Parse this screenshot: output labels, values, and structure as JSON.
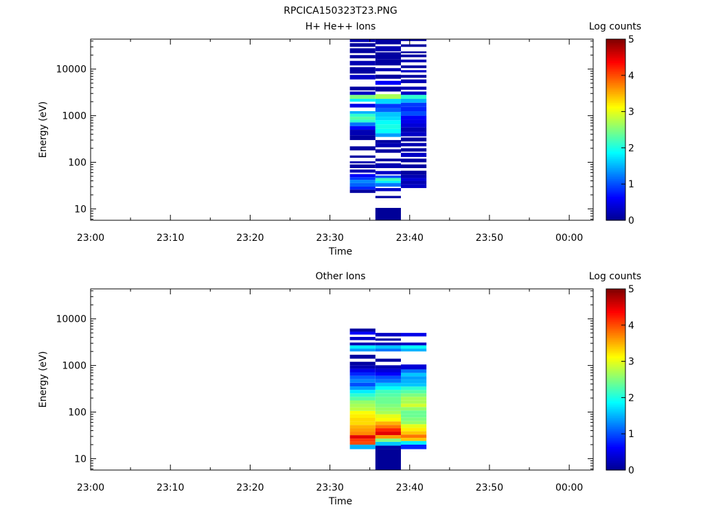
{
  "page_title": "RPCICA150323T23.PNG",
  "colormap": [
    "#00008f",
    "#0000ff",
    "#007fff",
    "#00ffff",
    "#7fff7f",
    "#ffff00",
    "#ff7f00",
    "#ff0000",
    "#7f0000"
  ],
  "chart_data": [
    {
      "type": "heatmap",
      "title": "H+ He++ Ions",
      "xlabel": "Time",
      "ylabel": "Energy (eV)",
      "colorbar_label": "Log counts",
      "colorbar_range": [
        0,
        5
      ],
      "colorbar_ticks": [
        "0",
        "1",
        "2",
        "3",
        "4",
        "5"
      ],
      "x_range": [
        "23:00",
        "00:03"
      ],
      "x_ticks": [
        "23:00",
        "23:10",
        "23:20",
        "23:30",
        "23:40",
        "23:50",
        "00:00"
      ],
      "y_scale": "log",
      "y_range": [
        5.7,
        44000
      ],
      "y_ticks": [
        "10",
        "100",
        "1000",
        "10000"
      ],
      "columns": [
        {
          "start": "23:32.5",
          "end": "23:35.7",
          "bins": [
            [
              22,
              26,
              0.1
            ],
            [
              26,
              30,
              0.8
            ],
            [
              30,
              36,
              1.1
            ],
            [
              36,
              42,
              1.3
            ],
            [
              42,
              48,
              0.9
            ],
            [
              48,
              56,
              0.6
            ],
            [
              60,
              70,
              0.2
            ],
            [
              75,
              90,
              0.1
            ],
            [
              95,
              105,
              0.2
            ],
            [
              125,
              140,
              0.1
            ],
            [
              180,
              220,
              0.1
            ],
            [
              300,
              380,
              0.1
            ],
            [
              380,
              500,
              0.2
            ],
            [
              500,
              600,
              0.6
            ],
            [
              600,
              720,
              1.2
            ],
            [
              720,
              820,
              2.1
            ],
            [
              820,
              950,
              2.3
            ],
            [
              950,
              1100,
              2.1
            ],
            [
              1100,
              1250,
              1.5
            ],
            [
              1500,
              1800,
              0.5
            ],
            [
              2000,
              2300,
              1.8
            ],
            [
              2300,
              2800,
              2.5
            ],
            [
              2800,
              3300,
              0.3
            ],
            [
              3500,
              4200,
              0.1
            ],
            [
              6000,
              7500,
              0.3
            ],
            [
              8000,
              11000,
              0.1
            ],
            [
              12000,
              15000,
              0.2
            ],
            [
              17000,
              20000,
              0.1
            ],
            [
              22000,
              28000,
              0.1
            ],
            [
              30000,
              36000,
              0.1
            ],
            [
              38000,
              44000,
              0.2
            ]
          ]
        },
        {
          "start": "23:35.7",
          "end": "23:38.9",
          "bins": [
            [
              5.7,
              10.5,
              0.05
            ],
            [
              17,
              19,
              0.1
            ],
            [
              24,
              28,
              0.3
            ],
            [
              30,
              36,
              1.2
            ],
            [
              36,
              40,
              1.8
            ],
            [
              40,
              46,
              2.2
            ],
            [
              46,
              52,
              1.0
            ],
            [
              55,
              65,
              0.3
            ],
            [
              75,
              95,
              0.2
            ],
            [
              105,
              120,
              0.1
            ],
            [
              160,
              190,
              0.1
            ],
            [
              210,
              260,
              0.2
            ],
            [
              260,
              300,
              0.1
            ],
            [
              350,
              420,
              1.4
            ],
            [
              420,
              520,
              1.9
            ],
            [
              520,
              650,
              2.0
            ],
            [
              650,
              800,
              1.9
            ],
            [
              800,
              950,
              1.7
            ],
            [
              950,
              1200,
              1.6
            ],
            [
              1200,
              1450,
              1.1
            ],
            [
              1450,
              1800,
              0.9
            ],
            [
              1800,
              2300,
              1.7
            ],
            [
              2300,
              2900,
              2.7
            ],
            [
              3300,
              4200,
              0.1
            ],
            [
              4600,
              5600,
              0.6
            ],
            [
              6200,
              7600,
              0.1
            ],
            [
              9000,
              10500,
              0.2
            ],
            [
              12000,
              16000,
              0.1
            ],
            [
              16000,
              23000,
              0.1
            ],
            [
              24000,
              31000,
              0.2
            ],
            [
              34000,
              44000,
              0.1
            ]
          ]
        },
        {
          "start": "23:38.9",
          "end": "23:42.1",
          "bins": [
            [
              28,
              34,
              0.3
            ],
            [
              34,
              40,
              0.2
            ],
            [
              40,
              46,
              0.4
            ],
            [
              46,
              54,
              0.2
            ],
            [
              54,
              66,
              0.1
            ],
            [
              75,
              90,
              0.1
            ],
            [
              100,
              120,
              0.1
            ],
            [
              130,
              160,
              0.3
            ],
            [
              170,
              200,
              0.1
            ],
            [
              220,
              260,
              0.2
            ],
            [
              280,
              340,
              0.1
            ],
            [
              360,
              450,
              0.3
            ],
            [
              450,
              560,
              0.2
            ],
            [
              560,
              680,
              0.4
            ],
            [
              680,
              820,
              0.5
            ],
            [
              820,
              1000,
              0.6
            ],
            [
              1000,
              1250,
              1.0
            ],
            [
              1250,
              1550,
              0.8
            ],
            [
              1550,
              1900,
              0.9
            ],
            [
              1900,
              2300,
              1.5
            ],
            [
              2300,
              2800,
              2.1
            ],
            [
              2800,
              3300,
              0.3
            ],
            [
              3600,
              4200,
              0.2
            ],
            [
              5000,
              6000,
              0.2
            ],
            [
              6500,
              7500,
              0.1
            ],
            [
              8500,
              9500,
              0.3
            ],
            [
              10500,
              12000,
              0.1
            ],
            [
              14000,
              16000,
              0.2
            ],
            [
              18000,
              20500,
              0.1
            ],
            [
              22000,
              24000,
              0.1
            ],
            [
              30000,
              34000,
              0.1
            ],
            [
              40000,
              44000,
              0.1
            ]
          ]
        }
      ]
    },
    {
      "type": "heatmap",
      "title": "Other Ions",
      "xlabel": "Time",
      "ylabel": "Energy (eV)",
      "colorbar_label": "Log counts",
      "colorbar_range": [
        0,
        5
      ],
      "colorbar_ticks": [
        "0",
        "1",
        "2",
        "3",
        "4",
        "5"
      ],
      "x_range": [
        "23:00",
        "00:03"
      ],
      "x_ticks": [
        "23:00",
        "23:10",
        "23:20",
        "23:30",
        "23:40",
        "23:50",
        "00:00"
      ],
      "y_scale": "log",
      "y_range": [
        5.7,
        44000
      ],
      "y_ticks": [
        "10",
        "100",
        "1000",
        "10000"
      ],
      "columns": [
        {
          "start": "23:32.5",
          "end": "23:35.7",
          "bins": [
            [
              16,
              20,
              1.5
            ],
            [
              20,
              23,
              4.0
            ],
            [
              23,
              27,
              4.1
            ],
            [
              27,
              32,
              4.5
            ],
            [
              32,
              38,
              3.7
            ],
            [
              38,
              45,
              3.6
            ],
            [
              45,
              53,
              3.5
            ],
            [
              53,
              63,
              3.3
            ],
            [
              63,
              75,
              3.3
            ],
            [
              75,
              90,
              3.2
            ],
            [
              90,
              106,
              3.1
            ],
            [
              106,
              126,
              2.8
            ],
            [
              126,
              150,
              2.7
            ],
            [
              150,
              178,
              2.6
            ],
            [
              178,
              212,
              2.3
            ],
            [
              212,
              252,
              2.1
            ],
            [
              252,
              300,
              1.8
            ],
            [
              300,
              357,
              1.4
            ],
            [
              357,
              425,
              1.0
            ],
            [
              425,
              505,
              1.3
            ],
            [
              505,
              600,
              1.1
            ],
            [
              600,
              715,
              0.8
            ],
            [
              715,
              850,
              0.5
            ],
            [
              850,
              1010,
              0.2
            ],
            [
              1010,
              1200,
              0.1
            ],
            [
              1400,
              1700,
              0.1
            ],
            [
              2000,
              2300,
              1.4
            ],
            [
              2300,
              2700,
              1.8
            ],
            [
              2700,
              3100,
              0.2
            ],
            [
              3500,
              4100,
              0.3
            ],
            [
              4600,
              5300,
              0.6
            ],
            [
              5300,
              6200,
              0.1
            ]
          ]
        },
        {
          "start": "23:35.7",
          "end": "23:38.9",
          "bins": [
            [
              5.7,
              16,
              0.05
            ],
            [
              16,
              19,
              0.1
            ],
            [
              19,
              23,
              1.6
            ],
            [
              23,
              27,
              2.5
            ],
            [
              27,
              32,
              3.6
            ],
            [
              32,
              38,
              4.5
            ],
            [
              38,
              45,
              4.2
            ],
            [
              45,
              53,
              3.8
            ],
            [
              53,
              63,
              3.5
            ],
            [
              63,
              75,
              3.1
            ],
            [
              75,
              90,
              3.0
            ],
            [
              90,
              106,
              2.7
            ],
            [
              106,
              126,
              2.6
            ],
            [
              126,
              150,
              2.5
            ],
            [
              150,
              178,
              2.4
            ],
            [
              178,
              212,
              2.4
            ],
            [
              212,
              252,
              2.3
            ],
            [
              252,
              300,
              2.2
            ],
            [
              300,
              357,
              1.9
            ],
            [
              357,
              425,
              1.6
            ],
            [
              425,
              505,
              1.2
            ],
            [
              505,
              600,
              1.0
            ],
            [
              600,
              715,
              0.6
            ],
            [
              715,
              850,
              0.4
            ],
            [
              850,
              1010,
              0.2
            ],
            [
              1200,
              1400,
              0.1
            ],
            [
              2000,
              2300,
              1.2
            ],
            [
              2300,
              2700,
              1.6
            ],
            [
              2700,
              3100,
              0.2
            ],
            [
              3400,
              3800,
              0.1
            ],
            [
              4200,
              5000,
              0.3
            ]
          ]
        },
        {
          "start": "23:38.9",
          "end": "23:42.1",
          "bins": [
            [
              16,
              20,
              0.8
            ],
            [
              20,
              24,
              1.8
            ],
            [
              24,
              28,
              3.4
            ],
            [
              28,
              33,
              3.8
            ],
            [
              33,
              39,
              3.4
            ],
            [
              39,
              46,
              3.2
            ],
            [
              46,
              55,
              3.0
            ],
            [
              55,
              65,
              2.6
            ],
            [
              65,
              77,
              2.5
            ],
            [
              77,
              91,
              2.4
            ],
            [
              91,
              108,
              2.4
            ],
            [
              108,
              128,
              2.6
            ],
            [
              128,
              152,
              2.9
            ],
            [
              152,
              180,
              2.7
            ],
            [
              180,
              213,
              2.7
            ],
            [
              213,
              252,
              2.5
            ],
            [
              252,
              298,
              2.3
            ],
            [
              298,
              353,
              2.1
            ],
            [
              353,
              418,
              1.6
            ],
            [
              418,
              495,
              1.5
            ],
            [
              495,
              586,
              1.4
            ],
            [
              586,
              694,
              1.6
            ],
            [
              694,
              822,
              1.2
            ],
            [
              822,
              1050,
              0.4
            ],
            [
              2000,
              2300,
              1.5
            ],
            [
              2300,
              2700,
              1.9
            ],
            [
              2700,
              3100,
              0.3
            ],
            [
              4200,
              5000,
              0.5
            ]
          ]
        }
      ]
    }
  ]
}
